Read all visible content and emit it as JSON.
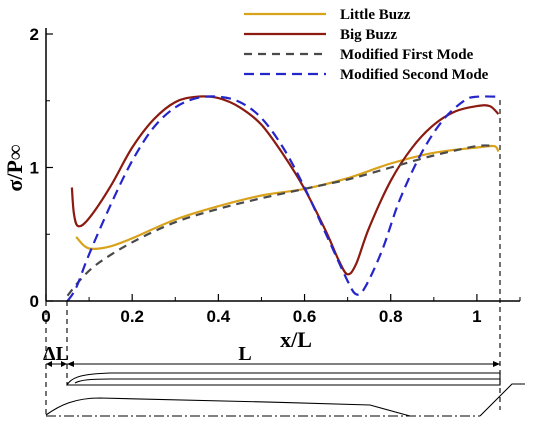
{
  "chart_data": {
    "type": "line",
    "xlabel": "x/L",
    "ylabel": "σ/P∞",
    "xlim": [
      0,
      1.1
    ],
    "ylim": [
      0,
      2
    ],
    "xticks": [
      "0",
      "0.2",
      "0.4",
      "0.6",
      "0.8",
      "1"
    ],
    "yticks": [
      "0",
      "1",
      "2"
    ],
    "grid": false,
    "legend_position": "top-right",
    "series": [
      {
        "name": "Little Buzz",
        "color": "#D9A21B",
        "dash": "solid",
        "points": [
          [
            0.07,
            0.48
          ],
          [
            0.09,
            0.41
          ],
          [
            0.11,
            0.39
          ],
          [
            0.15,
            0.41
          ],
          [
            0.2,
            0.47
          ],
          [
            0.3,
            0.61
          ],
          [
            0.4,
            0.71
          ],
          [
            0.5,
            0.79
          ],
          [
            0.6,
            0.84
          ],
          [
            0.7,
            0.92
          ],
          [
            0.8,
            1.03
          ],
          [
            0.9,
            1.11
          ],
          [
            1.0,
            1.15
          ],
          [
            1.04,
            1.16
          ],
          [
            1.05,
            1.12
          ]
        ]
      },
      {
        "name": "Big Buzz",
        "color": "#8B1A10",
        "dash": "solid",
        "points": [
          [
            0.06,
            0.85
          ],
          [
            0.065,
            0.65
          ],
          [
            0.075,
            0.56
          ],
          [
            0.1,
            0.62
          ],
          [
            0.15,
            0.86
          ],
          [
            0.2,
            1.15
          ],
          [
            0.25,
            1.36
          ],
          [
            0.3,
            1.49
          ],
          [
            0.35,
            1.53
          ],
          [
            0.4,
            1.52
          ],
          [
            0.45,
            1.45
          ],
          [
            0.5,
            1.32
          ],
          [
            0.55,
            1.1
          ],
          [
            0.6,
            0.84
          ],
          [
            0.65,
            0.52
          ],
          [
            0.68,
            0.3
          ],
          [
            0.7,
            0.2
          ],
          [
            0.72,
            0.28
          ],
          [
            0.75,
            0.55
          ],
          [
            0.8,
            0.9
          ],
          [
            0.85,
            1.15
          ],
          [
            0.9,
            1.32
          ],
          [
            0.95,
            1.42
          ],
          [
            1.0,
            1.46
          ],
          [
            1.03,
            1.46
          ],
          [
            1.05,
            1.4
          ]
        ]
      },
      {
        "name": "Modified First Mode",
        "color": "#4a4a4a",
        "dash": "8,6",
        "points": [
          [
            0.05,
            0.04
          ],
          [
            0.08,
            0.16
          ],
          [
            0.12,
            0.28
          ],
          [
            0.2,
            0.44
          ],
          [
            0.3,
            0.59
          ],
          [
            0.4,
            0.69
          ],
          [
            0.5,
            0.77
          ],
          [
            0.6,
            0.84
          ],
          [
            0.7,
            0.91
          ],
          [
            0.8,
            1.0
          ],
          [
            0.9,
            1.09
          ],
          [
            1.0,
            1.16
          ],
          [
            1.04,
            1.16
          ]
        ]
      },
      {
        "name": "Modified Second Mode",
        "color": "#2525CC",
        "dash": "10,6",
        "points": [
          [
            0.05,
            0.0
          ],
          [
            0.07,
            0.1
          ],
          [
            0.1,
            0.35
          ],
          [
            0.15,
            0.72
          ],
          [
            0.2,
            1.05
          ],
          [
            0.25,
            1.3
          ],
          [
            0.3,
            1.45
          ],
          [
            0.35,
            1.52
          ],
          [
            0.4,
            1.53
          ],
          [
            0.45,
            1.49
          ],
          [
            0.5,
            1.37
          ],
          [
            0.55,
            1.15
          ],
          [
            0.6,
            0.85
          ],
          [
            0.65,
            0.5
          ],
          [
            0.7,
            0.15
          ],
          [
            0.72,
            0.05
          ],
          [
            0.74,
            0.1
          ],
          [
            0.78,
            0.38
          ],
          [
            0.82,
            0.75
          ],
          [
            0.87,
            1.1
          ],
          [
            0.92,
            1.35
          ],
          [
            0.97,
            1.5
          ],
          [
            1.0,
            1.53
          ],
          [
            1.05,
            1.53
          ]
        ]
      }
    ]
  },
  "diagram": {
    "delta_label": "ΔL",
    "length_label": "L"
  }
}
